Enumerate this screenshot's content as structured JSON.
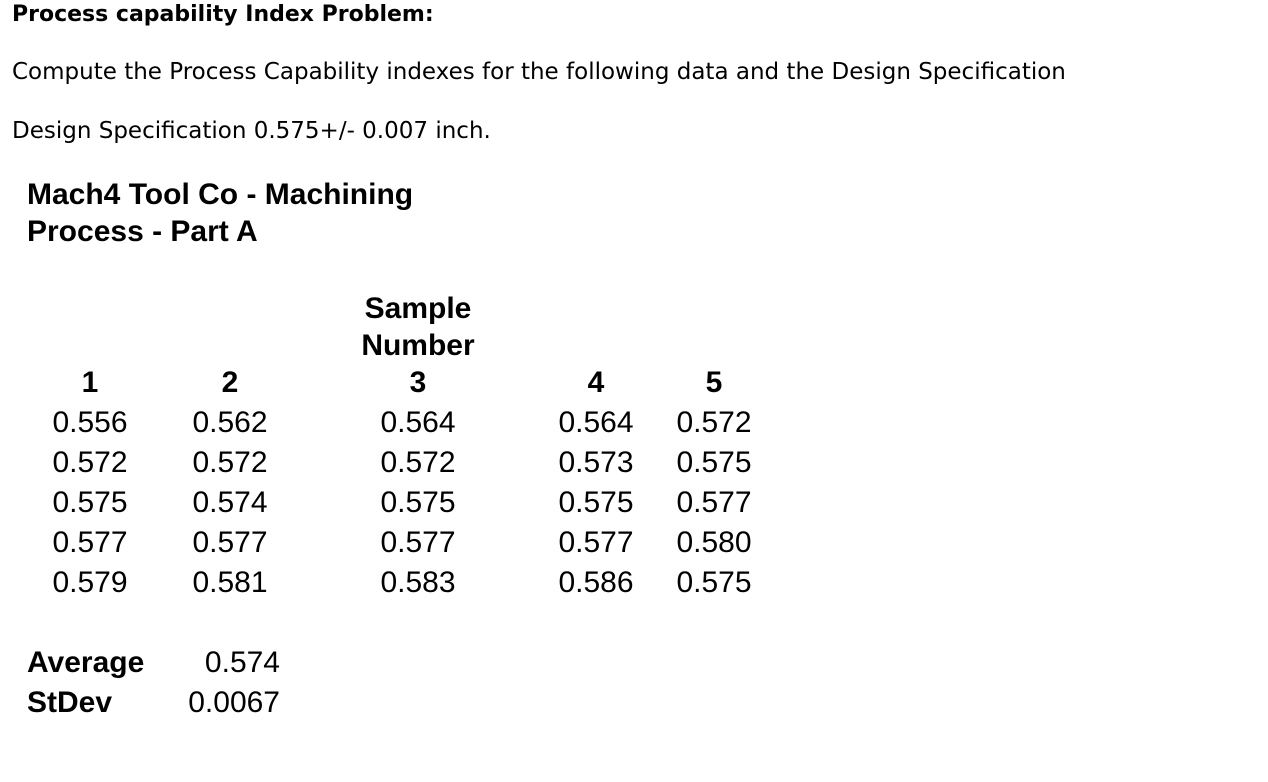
{
  "problem": {
    "title": "Process capability Index Problem:",
    "instruction": "Compute the Process Capability indexes for the following data and the Design Specification",
    "spec": "Design Specification 0.575+/- 0.007 inch."
  },
  "sheet": {
    "title": "Mach4 Tool Co - Machining Process - Part A",
    "sample_header": "Sample Number",
    "columns": [
      "1",
      "2",
      "3",
      "4",
      "5"
    ],
    "rows": [
      [
        "0.556",
        "0.562",
        "0.564",
        "0.564",
        "0.572"
      ],
      [
        "0.572",
        "0.572",
        "0.572",
        "0.573",
        "0.575"
      ],
      [
        "0.575",
        "0.574",
        "0.575",
        "0.575",
        "0.577"
      ],
      [
        "0.577",
        "0.577",
        "0.577",
        "0.577",
        "0.580"
      ],
      [
        "0.579",
        "0.581",
        "0.583",
        "0.586",
        "0.575"
      ]
    ],
    "stats": {
      "average_label": "Average",
      "average_value": "0.574",
      "stdev_label": "StDev",
      "stdev_value": "0.0067"
    }
  }
}
